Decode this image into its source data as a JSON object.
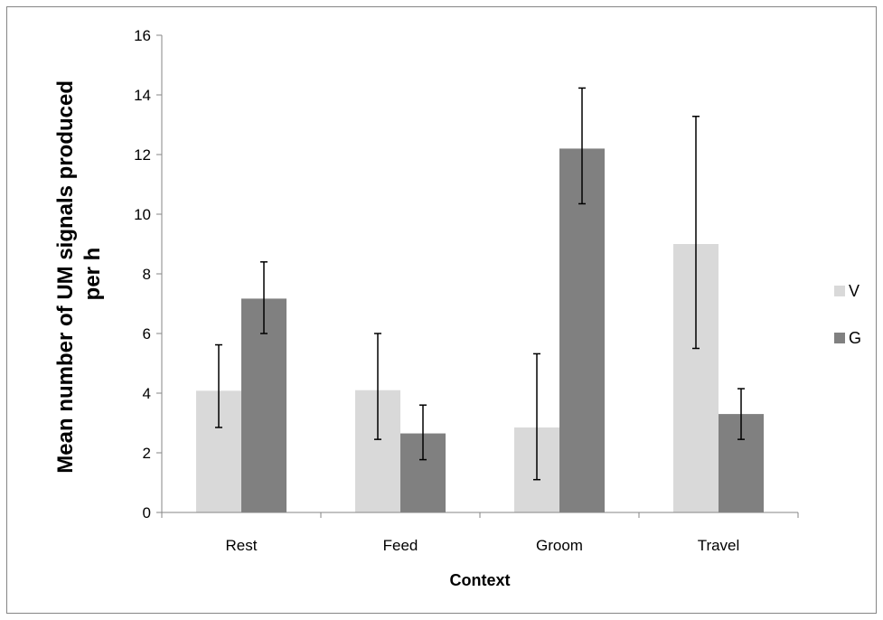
{
  "chart_data": {
    "type": "bar",
    "title": "",
    "xlabel": "Context",
    "ylabel_lines": [
      "Mean number of UM signals produced",
      "per h"
    ],
    "categories": [
      "Rest",
      "Feed",
      "Groom",
      "Travel"
    ],
    "ylim": [
      0,
      16
    ],
    "yticks": [
      0,
      2,
      4,
      6,
      8,
      10,
      12,
      14,
      16
    ],
    "ytick_labels": [
      "0",
      "2",
      "4",
      "6",
      "8",
      "10",
      "12",
      "14",
      "16"
    ],
    "grid": false,
    "legend_position": "right",
    "series": [
      {
        "name": "V",
        "color": "#d9d9d9",
        "values": [
          4.08,
          4.1,
          2.85,
          9.0
        ],
        "error_low": [
          2.85,
          2.45,
          1.1,
          5.5
        ],
        "error_high": [
          5.62,
          6.0,
          5.32,
          13.28
        ]
      },
      {
        "name": "G",
        "color": "#808080",
        "values": [
          7.17,
          2.65,
          12.2,
          3.3
        ],
        "error_low": [
          6.0,
          1.77,
          10.35,
          2.45
        ],
        "error_high": [
          8.4,
          3.6,
          14.23,
          4.15
        ]
      }
    ]
  }
}
